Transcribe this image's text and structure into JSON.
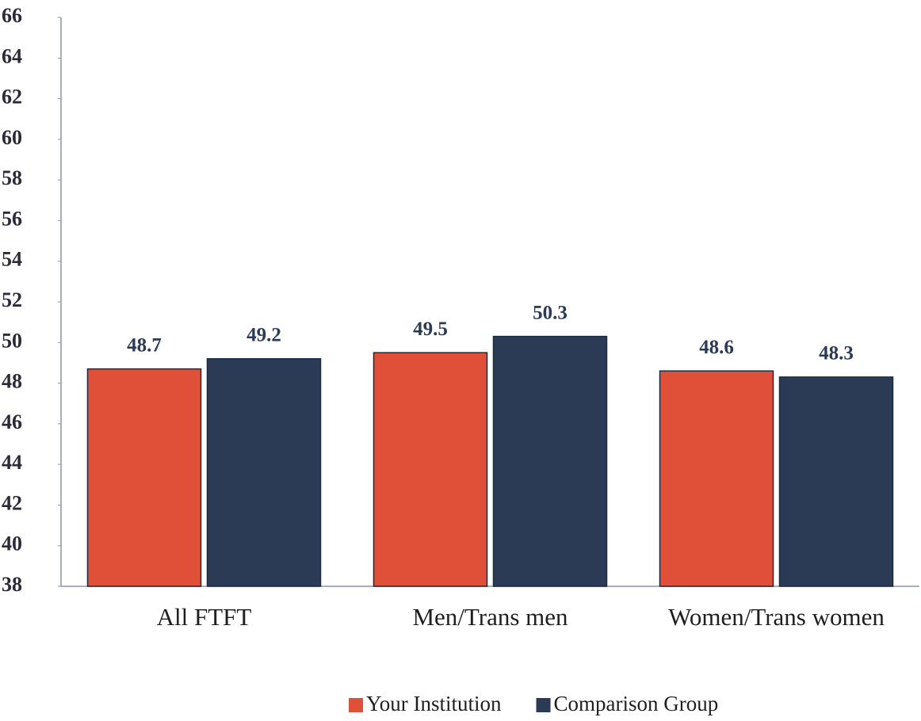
{
  "chart_data": {
    "type": "bar",
    "categories": [
      "All FTFT",
      "Men/Trans men",
      "Women/Trans women"
    ],
    "series": [
      {
        "name": "Your Institution",
        "color": "#e05038",
        "values": [
          48.7,
          49.5,
          48.6
        ]
      },
      {
        "name": "Comparison Group",
        "color": "#2b3a55",
        "values": [
          49.2,
          50.3,
          48.3
        ]
      }
    ],
    "ylim": [
      38,
      66
    ],
    "yticks": [
      38,
      40,
      42,
      44,
      46,
      48,
      50,
      52,
      54,
      56,
      58,
      60,
      62,
      64,
      66
    ],
    "legend": "bottom"
  }
}
